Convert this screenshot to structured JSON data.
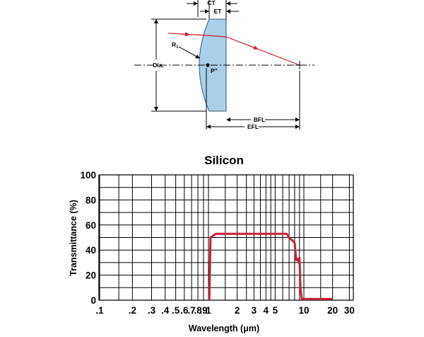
{
  "diagram": {
    "labels": {
      "ct": "CT",
      "et": "ET",
      "r1": "R",
      "r1_sub": "1",
      "dia": "Dia.",
      "p": "P\"",
      "bfl": "BFL",
      "efl": "EFL"
    },
    "colors": {
      "lens_fill": "#a9cfe9",
      "lens_stroke": "#3d5a73",
      "ray": "#d01d2a"
    }
  },
  "chart_data": {
    "type": "line",
    "title": "Silicon",
    "xlabel": "Wavelength (μm)",
    "ylabel": "Transmittance (%)",
    "x_scale": "log",
    "xlim": [
      0.1,
      40
    ],
    "ylim": [
      0,
      100
    ],
    "x_ticks": [
      0.1,
      0.2,
      0.3,
      0.4,
      0.5,
      0.6,
      0.7,
      0.8,
      0.9,
      1,
      2,
      3,
      4,
      5,
      10,
      20,
      30
    ],
    "x_tick_labels": [
      ".1",
      ".2",
      ".3",
      ".4",
      ".5",
      ".6",
      ".7",
      ".8",
      ".9",
      "1",
      "2",
      "3",
      "4",
      "5",
      "10",
      "20",
      "30"
    ],
    "y_ticks": [
      0,
      20,
      40,
      60,
      80,
      100
    ],
    "y_tick_labels": [
      "0",
      "20",
      "40",
      "60",
      "80",
      "100"
    ],
    "grid": true,
    "line_color": "#c8223a",
    "series": [
      {
        "x": [
          1.02,
          1.05,
          1.2,
          1.6,
          2.5,
          4.0,
          6.0,
          6.6,
          7.0,
          8.0,
          8.3,
          8.6,
          8.8,
          9.0,
          9.2,
          9.5,
          9.8,
          10.0,
          12.0,
          16.0,
          20.0
        ],
        "y": [
          0,
          50,
          53,
          53,
          53,
          53,
          53,
          53,
          50,
          46,
          32,
          33,
          30,
          34,
          10,
          1,
          1,
          1,
          1,
          1,
          1
        ]
      }
    ]
  }
}
